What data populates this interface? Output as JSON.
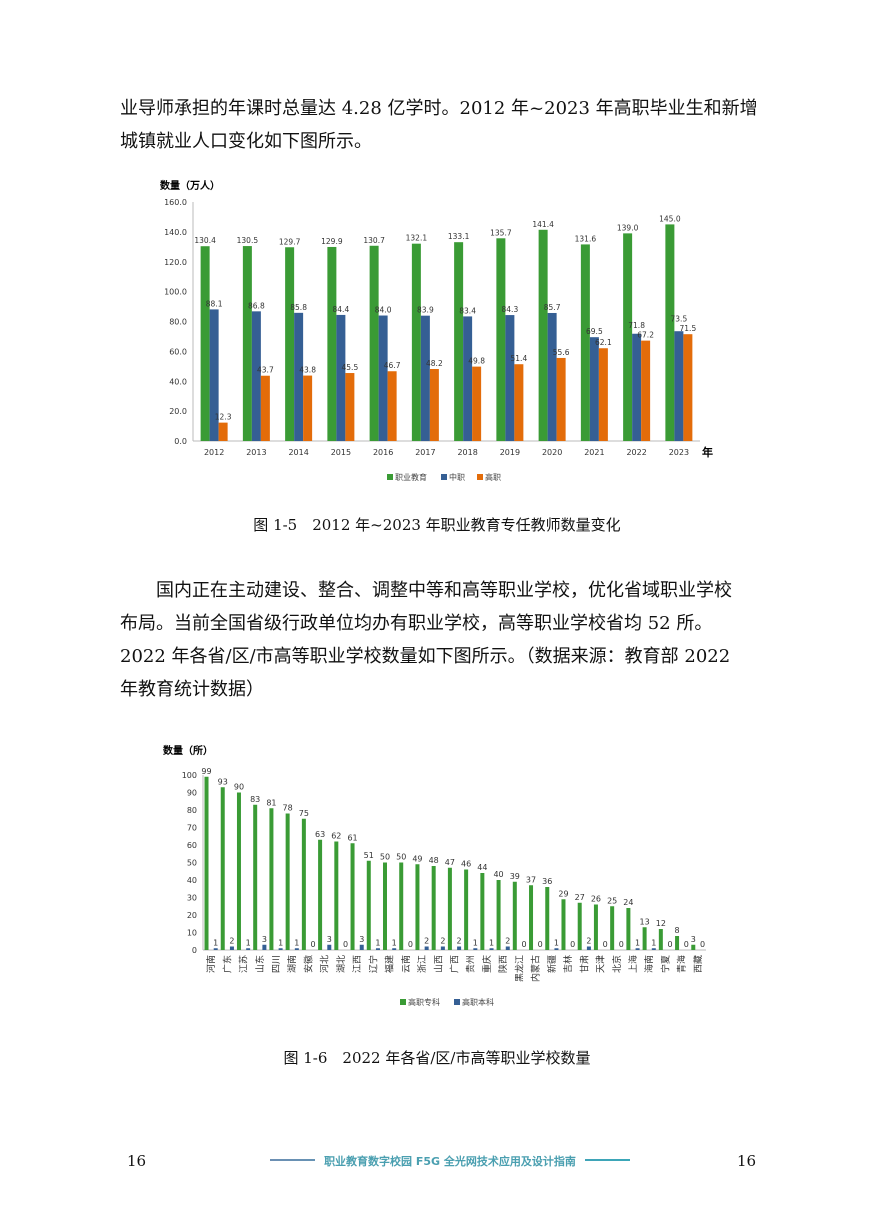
{
  "paragraphs": {
    "p1_line1": "业导师承担的年课时总量达 4.28 亿学时。2012 年~2023 年高职毕业生和新增",
    "p1_line2": "城镇就业人口变化如下图所示。",
    "p2_line1": "国内正在主动建设、整合、调整中等和高等职业学校，优化省域职业学校",
    "p2_line2": "布局。当前全国省级行政单位均办有职业学校，高等职业学校省均 52 所。",
    "p2_line3": "2022 年各省/区/市高等职业学校数量如下图所示。（数据来源：教育部 2022",
    "p2_line4": "年教育统计数据）"
  },
  "captions": {
    "fig1": "图 1-5　2012 年~2023 年职业教育专任教师数量变化",
    "fig2": "图 1-6　2022 年各省/区/市高等职业学校数量"
  },
  "footer": {
    "page_left": "16",
    "page_right": "16",
    "title": "职业教育数字校园 F5G 全光网技术应用及设计指南"
  },
  "chart_data": [
    {
      "type": "bar",
      "title": "",
      "ylabel": "数量（万人）",
      "xlabel": "年",
      "ylim": [
        0,
        160
      ],
      "yticks": [
        "0.0",
        "20.0",
        "40.0",
        "60.0",
        "80.0",
        "100.0",
        "120.0",
        "140.0",
        "160.0"
      ],
      "categories": [
        "2012",
        "2013",
        "2014",
        "2015",
        "2016",
        "2017",
        "2018",
        "2019",
        "2020",
        "2021",
        "2022",
        "2023"
      ],
      "series": [
        {
          "name": "职业教育",
          "color": "#3a9b35",
          "values": [
            130.4,
            130.5,
            129.7,
            129.9,
            130.7,
            132.1,
            133.1,
            135.7,
            141.4,
            131.6,
            139.0,
            145.0
          ]
        },
        {
          "name": "中职",
          "color": "#355f94",
          "values": [
            88.1,
            86.8,
            85.8,
            84.4,
            84.0,
            83.9,
            83.4,
            84.3,
            85.7,
            69.5,
            71.8,
            73.5
          ]
        },
        {
          "name": "高职",
          "color": "#e36c0a",
          "values": [
            12.3,
            43.7,
            43.8,
            45.5,
            46.7,
            48.2,
            49.8,
            51.4,
            55.6,
            62.1,
            67.2,
            71.5
          ]
        }
      ],
      "legend": "bottom"
    },
    {
      "type": "bar",
      "title": "",
      "ylabel": "数量（所）",
      "ylim": [
        0,
        100
      ],
      "yticks": [
        "0",
        "10",
        "20",
        "30",
        "40",
        "50",
        "60",
        "70",
        "80",
        "90",
        "100"
      ],
      "categories": [
        "河南",
        "广东",
        "江苏",
        "山东",
        "四川",
        "湖南",
        "安徽",
        "河北",
        "湖北",
        "江西",
        "辽宁",
        "福建",
        "云南",
        "浙江",
        "山西",
        "广西",
        "贵州",
        "重庆",
        "陕西",
        "黑龙江",
        "内蒙古",
        "新疆",
        "吉林",
        "甘肃",
        "天津",
        "北京",
        "上海",
        "海南",
        "宁夏",
        "青海",
        "西藏"
      ],
      "series": [
        {
          "name": "高职专科",
          "color": "#3a9b35",
          "values": [
            99,
            93,
            90,
            83,
            81,
            78,
            75,
            63,
            62,
            61,
            51,
            50,
            50,
            49,
            48,
            47,
            46,
            44,
            40,
            39,
            37,
            36,
            29,
            27,
            26,
            25,
            24,
            13,
            12,
            8,
            3
          ]
        },
        {
          "name": "高职本科",
          "color": "#355f94",
          "values": [
            1,
            2,
            1,
            3,
            1,
            1,
            0,
            3,
            0,
            3,
            1,
            1,
            0,
            2,
            2,
            2,
            1,
            1,
            2,
            0,
            0,
            1,
            0,
            2,
            0,
            0,
            1,
            1,
            0,
            0,
            0
          ]
        }
      ],
      "legend": "bottom"
    }
  ]
}
